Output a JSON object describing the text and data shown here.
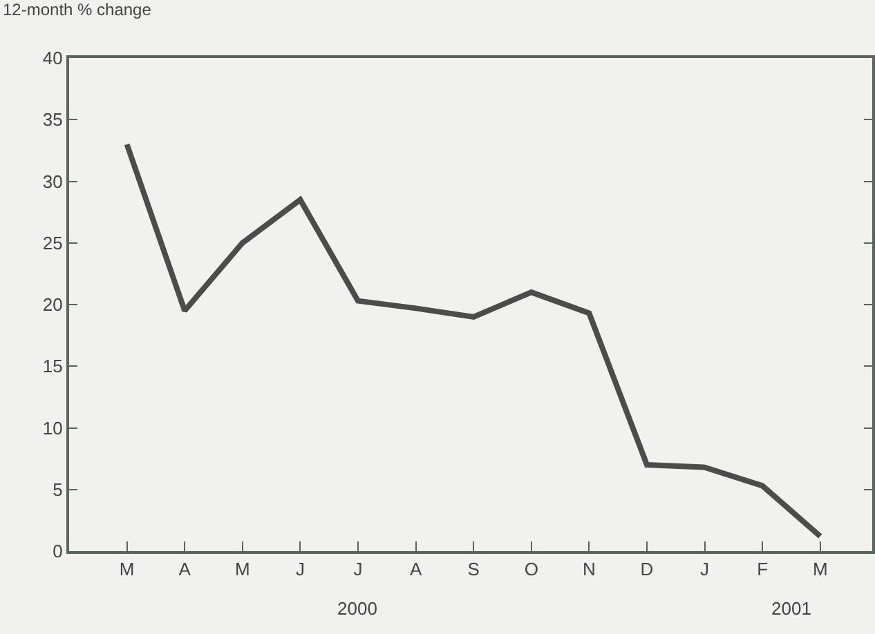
{
  "chart_data": {
    "type": "line",
    "ylabel": "12-month % change",
    "categories": [
      "M",
      "A",
      "M",
      "J",
      "J",
      "A",
      "S",
      "O",
      "N",
      "D",
      "J",
      "F",
      "M"
    ],
    "series": [
      {
        "color": "#4a4d4a",
        "values": [
          33,
          19.5,
          25,
          28.5,
          20.3,
          19.7,
          19,
          21,
          19.3,
          7,
          6.8,
          5.3,
          1.2
        ]
      }
    ],
    "ylim": [
      0,
      40
    ],
    "yticks": [
      0,
      5,
      10,
      15,
      20,
      25,
      30,
      35,
      40
    ],
    "annotations": [
      "2000",
      "2001"
    ],
    "grid": false,
    "marker": "none",
    "line_style": "solid"
  }
}
